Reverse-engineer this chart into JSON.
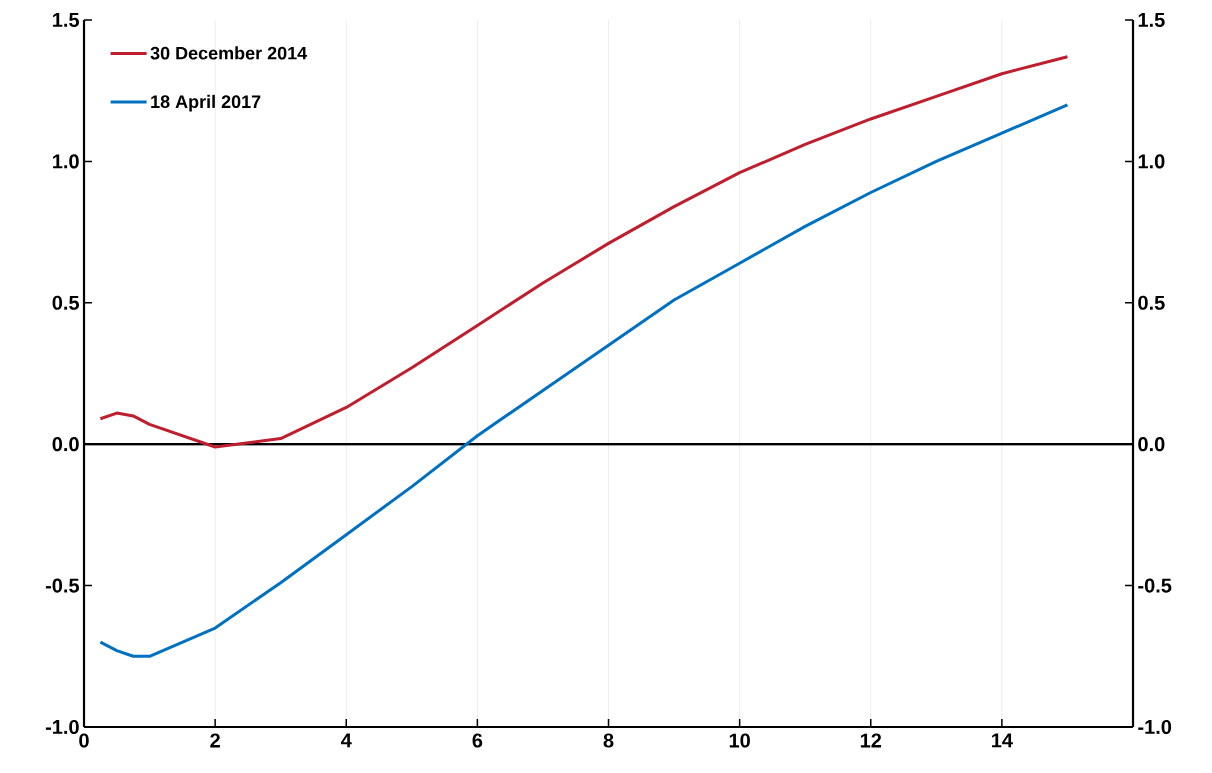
{
  "chart_data": {
    "type": "line",
    "x": [
      0.25,
      0.5,
      0.75,
      1,
      2,
      3,
      4,
      5,
      6,
      7,
      8,
      9,
      10,
      11,
      12,
      13,
      14,
      15
    ],
    "series": [
      {
        "name": "30 December 2014",
        "color": "#be1e2d",
        "values": [
          0.09,
          0.11,
          0.1,
          0.07,
          -0.01,
          0.02,
          0.13,
          0.27,
          0.42,
          0.57,
          0.71,
          0.84,
          0.96,
          1.06,
          1.15,
          1.23,
          1.31,
          1.37
        ]
      },
      {
        "name": "18 April 2017",
        "color": "#0070c0",
        "values": [
          -0.7,
          -0.73,
          -0.75,
          -0.75,
          -0.65,
          -0.49,
          -0.32,
          -0.15,
          0.03,
          0.19,
          0.35,
          0.51,
          0.64,
          0.77,
          0.89,
          1.0,
          1.1,
          1.2
        ]
      }
    ],
    "xlim": [
      0,
      16
    ],
    "xticks": [
      0,
      2,
      4,
      6,
      8,
      10,
      12,
      14
    ],
    "ylim": [
      -1.0,
      1.5
    ],
    "yticks": [
      {
        "value": -1.0,
        "label": "-1.0"
      },
      -0.5,
      {
        "value": 0.0,
        "label": "0.0"
      },
      0.5,
      {
        "value": 1.0,
        "label": "1.0"
      },
      1.5
    ],
    "y2lim": [
      -1.0,
      1.5
    ],
    "y2ticks": [
      {
        "value": -1.0,
        "label": "-1.0"
      },
      -0.5,
      {
        "value": 0.0,
        "label": "0.0"
      },
      0.5,
      {
        "value": 1.0,
        "label": "1.0"
      },
      1.5
    ],
    "ref_lines": [
      {
        "axis": "y",
        "value": 0,
        "color": "#000000"
      }
    ],
    "grid": "x",
    "legend": "top left",
    "marker": "none",
    "line_style": "solid"
  }
}
